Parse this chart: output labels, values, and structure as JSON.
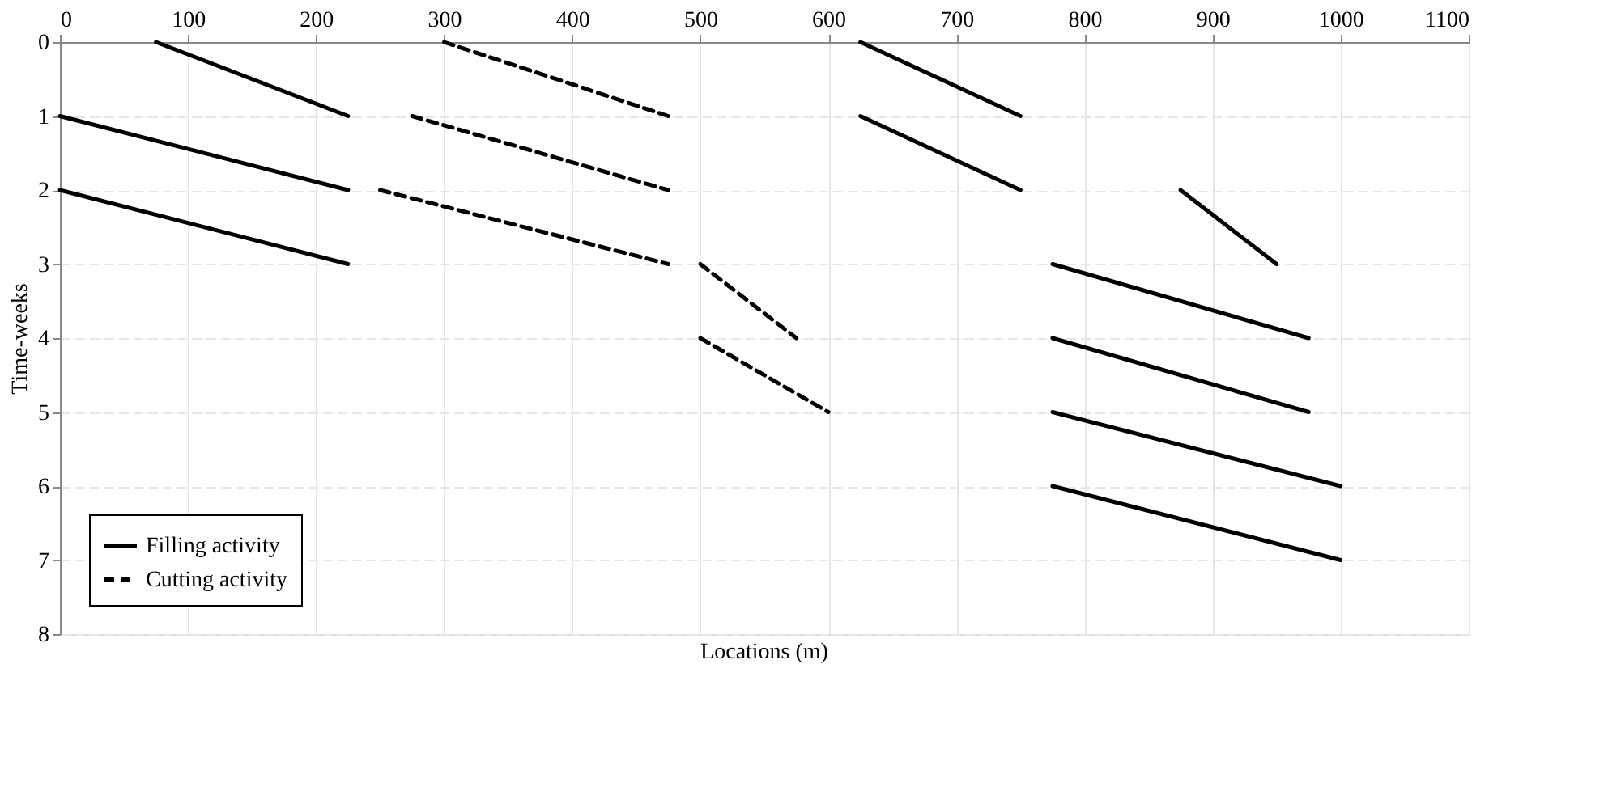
{
  "chart_data": {
    "type": "line",
    "xlabel": "Locations (m)",
    "ylabel": "Time-weeks",
    "xlim": [
      0,
      1100
    ],
    "xticks": [
      0,
      100,
      200,
      300,
      400,
      500,
      600,
      700,
      800,
      900,
      1000,
      1100
    ],
    "ylim": [
      8,
      0
    ],
    "yticks": [
      0,
      1,
      2,
      3,
      4,
      5,
      6,
      7,
      8
    ],
    "grid": true,
    "legend": "bottom left",
    "marker": "none",
    "series": [
      {
        "name": "Filling activity",
        "color": "#000000",
        "line_style": "solid",
        "x": [
          75,
          225
        ],
        "values": [
          0,
          1
        ]
      },
      {
        "color": "#000000",
        "line_style": "solid",
        "x": [
          0,
          225
        ],
        "values": [
          1,
          2
        ]
      },
      {
        "color": "#000000",
        "line_style": "solid",
        "x": [
          0,
          225
        ],
        "values": [
          2,
          3
        ]
      },
      {
        "color": "#000000",
        "line_style": "solid",
        "x": [
          625,
          750
        ],
        "values": [
          0,
          1
        ]
      },
      {
        "color": "#000000",
        "line_style": "solid",
        "x": [
          625,
          750
        ],
        "values": [
          1,
          2
        ]
      },
      {
        "color": "#000000",
        "line_style": "solid",
        "x": [
          875,
          950
        ],
        "values": [
          2,
          3
        ]
      },
      {
        "color": "#000000",
        "line_style": "solid",
        "x": [
          775,
          975
        ],
        "values": [
          3,
          4
        ]
      },
      {
        "color": "#000000",
        "line_style": "solid",
        "x": [
          775,
          975
        ],
        "values": [
          4,
          5
        ]
      },
      {
        "color": "#000000",
        "line_style": "solid",
        "x": [
          775,
          1000
        ],
        "values": [
          5,
          6
        ]
      },
      {
        "color": "#000000",
        "line_style": "solid",
        "x": [
          775,
          1000
        ],
        "values": [
          6,
          7
        ]
      },
      {
        "name": "Cutting activity",
        "color": "#000000",
        "line_style": "dashed",
        "x": [
          300,
          475
        ],
        "values": [
          0,
          1
        ]
      },
      {
        "color": "#000000",
        "line_style": "dashed",
        "x": [
          275,
          475
        ],
        "values": [
          1,
          2
        ]
      },
      {
        "color": "#000000",
        "line_style": "dashed",
        "x": [
          250,
          475
        ],
        "values": [
          2,
          3
        ]
      },
      {
        "color": "#000000",
        "line_style": "dashed",
        "x": [
          500,
          575
        ],
        "values": [
          3,
          4
        ]
      },
      {
        "color": "#000000",
        "line_style": "dashed",
        "x": [
          500,
          600
        ],
        "values": [
          4,
          5
        ]
      }
    ]
  }
}
